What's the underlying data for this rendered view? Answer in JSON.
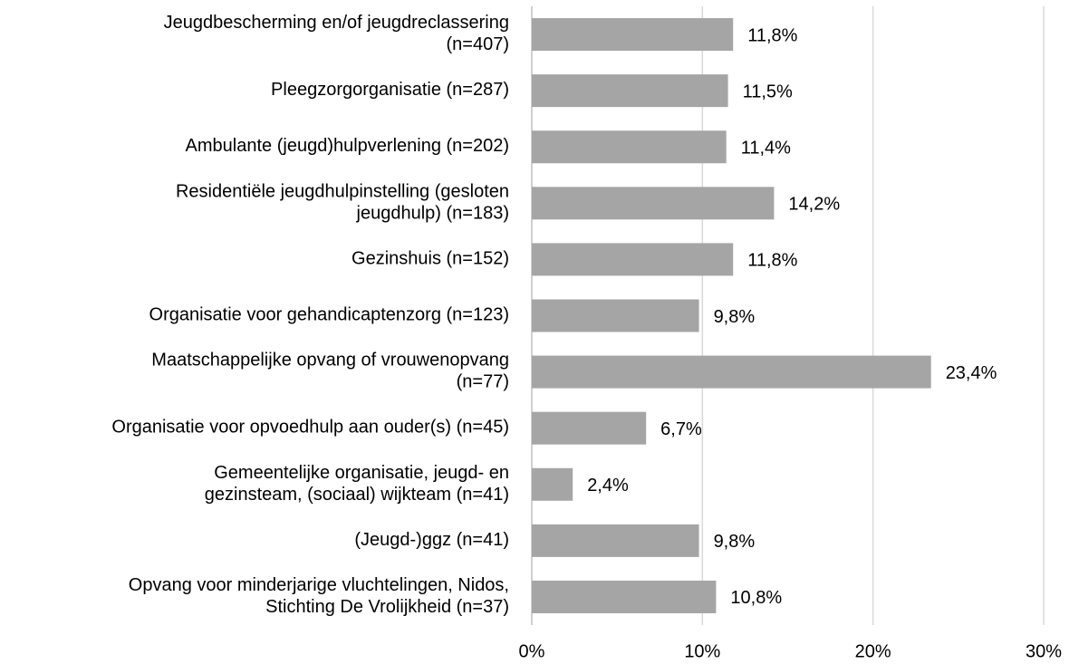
{
  "chart_data": {
    "type": "barh",
    "categories": [
      "Jeugdbescherming en/of jeugdreclassering\n(n=407)",
      "Pleegzorgorganisatie (n=287)",
      "Ambulante (jeugd)hulpverlening (n=202)",
      "Residentiële jeugdhulpinstelling (gesloten\njeugdhulp) (n=183)",
      "Gezinshuis (n=152)",
      "Organisatie voor gehandicaptenzorg (n=123)",
      "Maatschappelijke opvang of vrouwenopvang\n(n=77)",
      "Organisatie voor opvoedhulp aan ouder(s) (n=45)",
      "Gemeentelijke organisatie, jeugd- en\ngezinsteam, (sociaal) wijkteam (n=41)",
      "(Jeugd-)ggz (n=41)",
      "Opvang voor minderjarige vluchtelingen, Nidos,\nStichting De Vrolijkheid (n=37)"
    ],
    "values": [
      11.8,
      11.5,
      11.4,
      14.2,
      11.8,
      9.8,
      23.4,
      6.7,
      2.4,
      9.8,
      10.8
    ],
    "value_labels": [
      "11,8%",
      "11,5%",
      "11,4%",
      "14,2%",
      "11,8%",
      "9,8%",
      "23,4%",
      "6,7%",
      "2,4%",
      "9,8%",
      "10,8%"
    ],
    "color": "#a5a5a5",
    "xlim": [
      0,
      30
    ],
    "xticks": [
      {
        "value": 0,
        "label": "0%"
      },
      {
        "value": 10,
        "label": "10%"
      },
      {
        "value": 20,
        "label": "20%"
      },
      {
        "value": 30,
        "label": "30%"
      }
    ],
    "grid": true
  }
}
